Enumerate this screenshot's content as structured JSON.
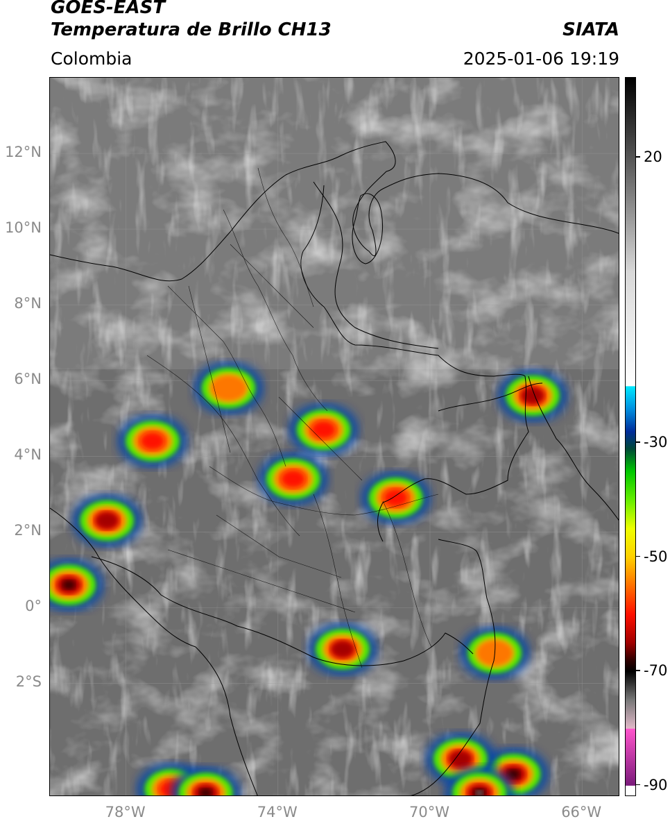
{
  "header": {
    "satellite": "GOES-EAST",
    "product": "Temperatura de Brillo CH13",
    "brand": "SIATA",
    "region": "Colombia",
    "timestamp": "2025-01-06 19:19"
  },
  "map": {
    "lon_range": [
      -80,
      -65
    ],
    "lat_range": [
      -5,
      14
    ],
    "lat_ticks": [
      {
        "value": 12,
        "label": "12°N"
      },
      {
        "value": 10,
        "label": "10°N"
      },
      {
        "value": 8,
        "label": "8°N"
      },
      {
        "value": 6,
        "label": "6°N"
      },
      {
        "value": 4,
        "label": "4°N"
      },
      {
        "value": 2,
        "label": "2°N"
      },
      {
        "value": 0,
        "label": "0°"
      },
      {
        "value": -2,
        "label": "2°S"
      }
    ],
    "lon_ticks": [
      {
        "value": -78,
        "label": "78°W"
      },
      {
        "value": -74,
        "label": "74°W"
      },
      {
        "value": -70,
        "label": "70°W"
      },
      {
        "value": -66,
        "label": "66°W"
      }
    ]
  },
  "colorbar": {
    "range": [
      -92,
      34
    ],
    "ticks": [
      {
        "value": 20,
        "label": "20"
      },
      {
        "value": -30,
        "label": "-30"
      },
      {
        "value": -50,
        "label": "-50"
      },
      {
        "value": -70,
        "label": "-70"
      },
      {
        "value": -90,
        "label": "-90"
      }
    ],
    "stops": [
      {
        "value": 34,
        "color": "#000000"
      },
      {
        "value": 20,
        "color": "#555555"
      },
      {
        "value": 0,
        "color": "#d8d8d8"
      },
      {
        "value": -20,
        "color": "#ffffff"
      },
      {
        "value": -20.1,
        "color": "#00e8ff"
      },
      {
        "value": -24,
        "color": "#0090e0"
      },
      {
        "value": -28,
        "color": "#002c9a"
      },
      {
        "value": -31,
        "color": "#004838"
      },
      {
        "value": -35,
        "color": "#00c800"
      },
      {
        "value": -40,
        "color": "#66ee00"
      },
      {
        "value": -45,
        "color": "#eeff00"
      },
      {
        "value": -50,
        "color": "#ffd000"
      },
      {
        "value": -55,
        "color": "#ff7000"
      },
      {
        "value": -60,
        "color": "#ff1000"
      },
      {
        "value": -65,
        "color": "#a00000"
      },
      {
        "value": -68,
        "color": "#300000"
      },
      {
        "value": -70,
        "color": "#000000"
      },
      {
        "value": -75,
        "color": "#777777"
      },
      {
        "value": -80,
        "color": "#e0b8c8"
      },
      {
        "value": -80.1,
        "color": "#ff55cc"
      },
      {
        "value": -90,
        "color": "#7a1a7a"
      },
      {
        "value": -90.1,
        "color": "#ffffff"
      },
      {
        "value": -92,
        "color": "#ffffff"
      }
    ]
  },
  "storm_cells": [
    {
      "lon": -79.5,
      "lat": 0.6,
      "min_temp": -68
    },
    {
      "lon": -78.5,
      "lat": 2.3,
      "min_temp": -67
    },
    {
      "lon": -77.3,
      "lat": 4.4,
      "min_temp": -62
    },
    {
      "lon": -75.3,
      "lat": 5.8,
      "min_temp": -55
    },
    {
      "lon": -73.6,
      "lat": 3.4,
      "min_temp": -60
    },
    {
      "lon": -72.8,
      "lat": 4.7,
      "min_temp": -58
    },
    {
      "lon": -70.9,
      "lat": 2.9,
      "min_temp": -60
    },
    {
      "lon": -67.3,
      "lat": 5.6,
      "min_temp": -67
    },
    {
      "lon": -68.3,
      "lat": -1.2,
      "min_temp": -56
    },
    {
      "lon": -67.8,
      "lat": -4.4,
      "min_temp": -68
    },
    {
      "lon": -69.2,
      "lat": -4.0,
      "min_temp": -66
    },
    {
      "lon": -68.7,
      "lat": -4.9,
      "min_temp": -72
    },
    {
      "lon": -76.8,
      "lat": -4.8,
      "min_temp": -62
    },
    {
      "lon": -75.9,
      "lat": -4.9,
      "min_temp": -70
    },
    {
      "lon": -72.3,
      "lat": -1.1,
      "min_temp": -66
    }
  ]
}
